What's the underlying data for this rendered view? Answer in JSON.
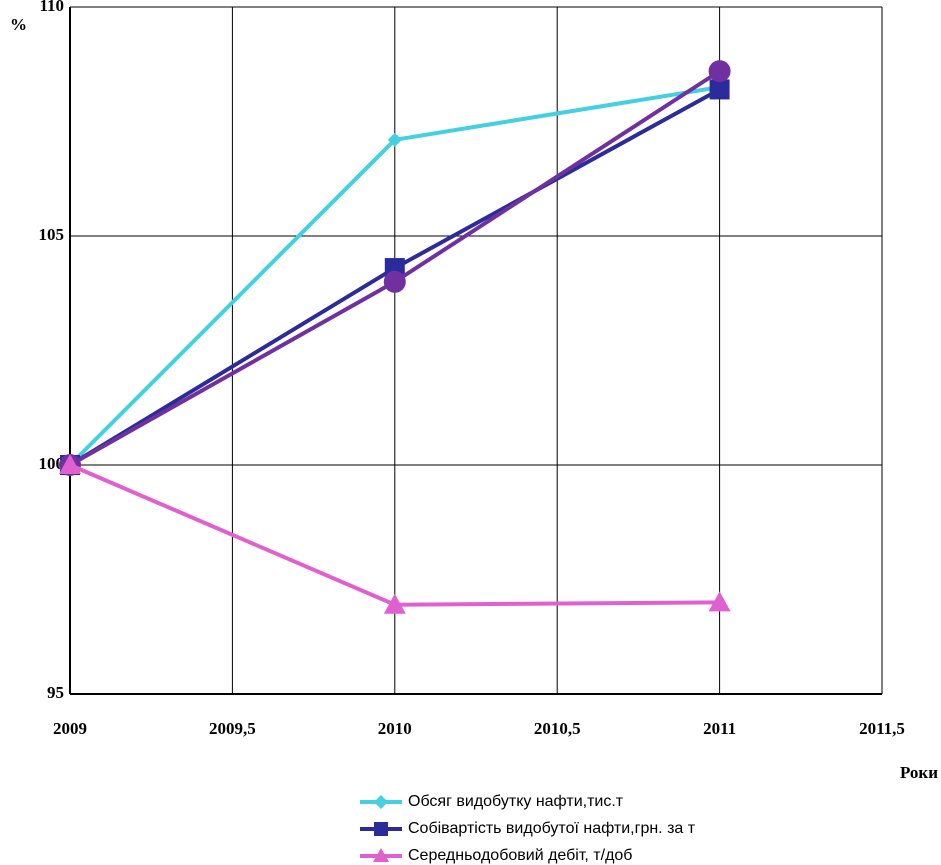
{
  "chart_data": {
    "type": "line",
    "y_label": "%",
    "x_label": "Роки",
    "x": [
      2009,
      2010,
      2011
    ],
    "series": [
      {
        "name": "Обсяг видобутку нафти,тис.т",
        "color": "#44d0e0",
        "marker": "diamond",
        "values": [
          100,
          107.1,
          108.25
        ]
      },
      {
        "name": "Собівартість видобутої нафти,грн. за т",
        "color": "#2b2b9b",
        "marker": "square",
        "values": [
          100,
          104.3,
          108.2
        ]
      },
      {
        "color": "#7030a0",
        "marker": "circle",
        "values": [
          100,
          104.0,
          108.6
        ]
      },
      {
        "name": "Середньодобовий дебіт, т/доб",
        "color": "#e060d0",
        "marker": "triangle",
        "values": [
          100,
          96.95,
          97.0
        ]
      }
    ],
    "xlim": [
      2009,
      2011.5
    ],
    "xticks": [
      2009,
      {
        "value": 2009.5,
        "label": "2009,5"
      },
      2010,
      {
        "value": 2010.5,
        "label": "2010,5"
      },
      2011,
      {
        "value": 2011.5,
        "label": "2011,5"
      }
    ],
    "ylim": [
      95,
      110
    ],
    "yticks": [
      95,
      100,
      105,
      110
    ],
    "grid": true,
    "legend": "bottom"
  }
}
